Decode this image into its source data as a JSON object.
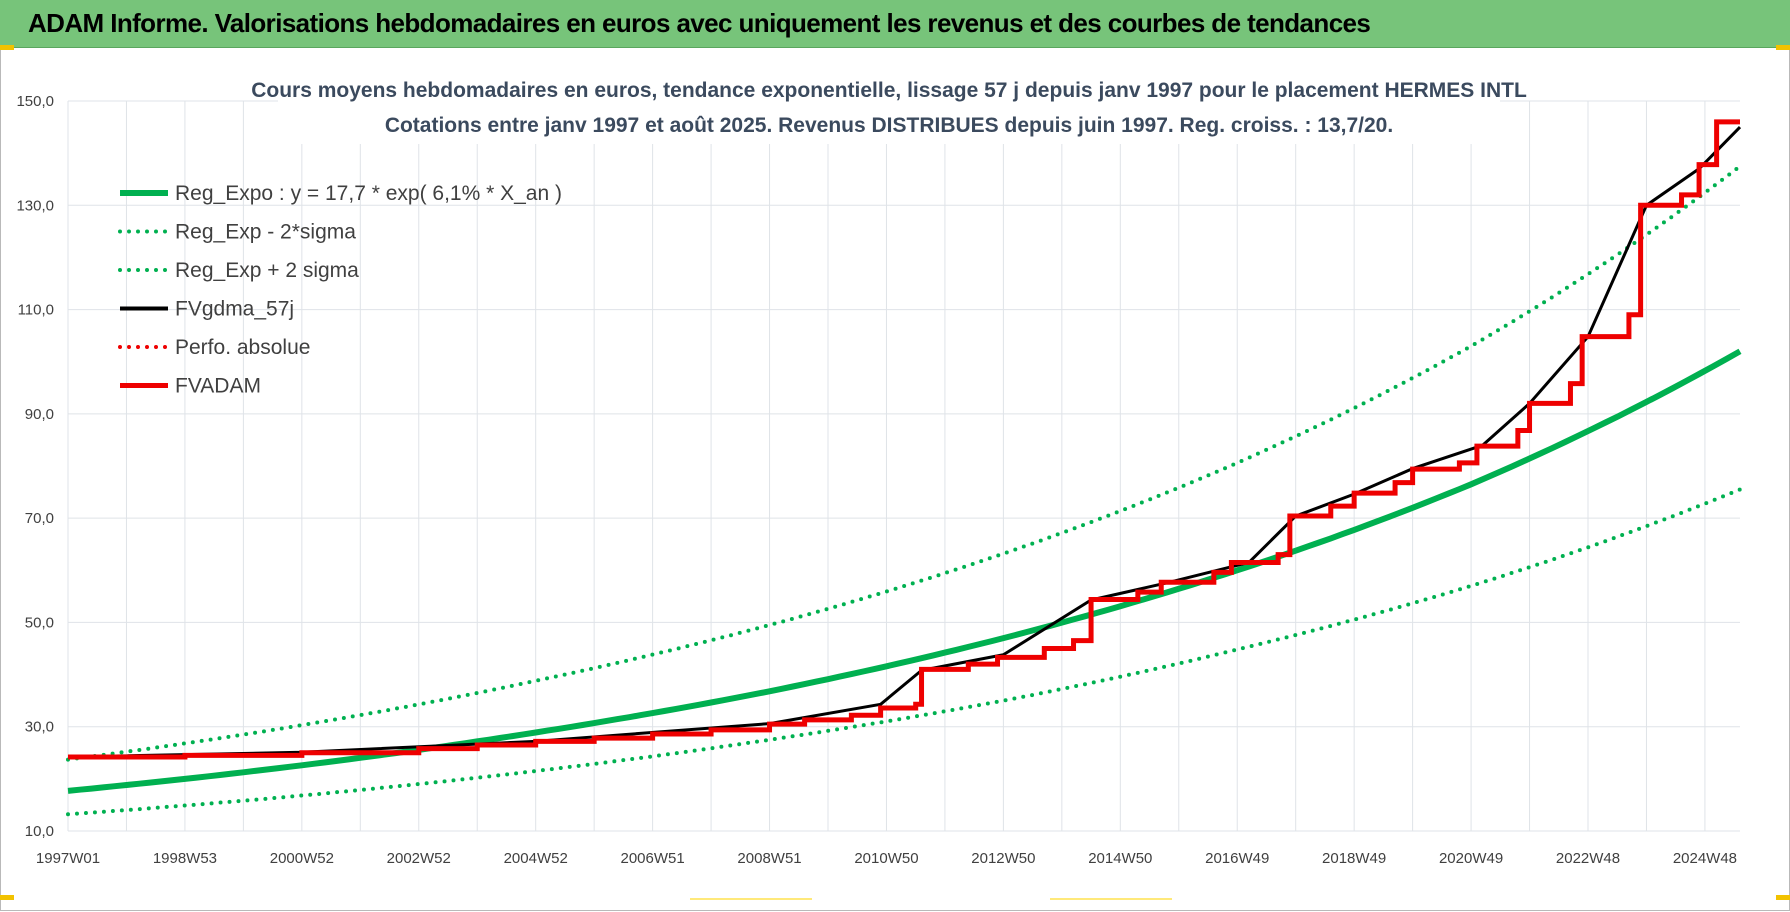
{
  "header": {
    "title": "ADAM Informe. Valorisations hebdomadaires en euros avec uniquement les revenus et des courbes de tendances"
  },
  "colors": {
    "header_bg": "#77c47a",
    "green": "#00b050",
    "red": "#ee0000",
    "black": "#000000",
    "title": "#3b4a5e"
  },
  "chart_data": {
    "type": "line",
    "title_lines": [
      "Cours moyens hebdomadaires en euros, tendance exponentielle, lissage 57 j depuis janv 1997 pour le placement HERMES INTL",
      "Cotations entre janv 1997 et août 2025. Revenus DISTRIBUES depuis juin 1997. Reg. croiss. : 13,7/20."
    ],
    "ylim": [
      10,
      150
    ],
    "y_ticks": [
      "10,0",
      "30,0",
      "50,0",
      "70,0",
      "90,0",
      "110,0",
      "130,0",
      "150,0"
    ],
    "y_tick_values": [
      10,
      30,
      50,
      70,
      90,
      110,
      130,
      150
    ],
    "x_range_years": [
      1997.0,
      2025.6
    ],
    "x_ticks": [
      {
        "year": 1997.0,
        "label": "1997W01"
      },
      {
        "year": 1999.0,
        "label": "1998W53"
      },
      {
        "year": 2001.0,
        "label": "2000W52"
      },
      {
        "year": 2003.0,
        "label": "2002W52"
      },
      {
        "year": 2005.0,
        "label": "2004W52"
      },
      {
        "year": 2007.0,
        "label": "2006W51"
      },
      {
        "year": 2009.0,
        "label": "2008W51"
      },
      {
        "year": 2011.0,
        "label": "2010W50"
      },
      {
        "year": 2013.0,
        "label": "2012W50"
      },
      {
        "year": 2015.0,
        "label": "2014W50"
      },
      {
        "year": 2017.0,
        "label": "2016W49"
      },
      {
        "year": 2019.0,
        "label": "2018W49"
      },
      {
        "year": 2021.0,
        "label": "2020W49"
      },
      {
        "year": 2023.0,
        "label": "2022W48"
      },
      {
        "year": 2025.0,
        "label": "2024W48"
      }
    ],
    "grid": true,
    "legend_position": "top-left",
    "series": [
      {
        "name": "Reg_Expo : y = 17,7 * exp( 6,1% *  X_an )",
        "style": "solid-thick",
        "color": "#00b050",
        "points": [
          [
            1997.0,
            17.7
          ],
          [
            2001.0,
            22.6
          ],
          [
            2005.0,
            28.9
          ],
          [
            2009.0,
            36.8
          ],
          [
            2013.0,
            47.0
          ],
          [
            2017.0,
            60.0
          ],
          [
            2021.0,
            76.5
          ],
          [
            2025.6,
            102.0
          ]
        ]
      },
      {
        "name": "Reg_Exp - 2*sigma",
        "style": "dotted",
        "color": "#00b050",
        "points": [
          [
            1997.0,
            13.2
          ],
          [
            2001.0,
            16.8
          ],
          [
            2005.0,
            21.5
          ],
          [
            2009.0,
            27.5
          ],
          [
            2013.0,
            35.0
          ],
          [
            2017.0,
            44.8
          ],
          [
            2021.0,
            57.0
          ],
          [
            2025.6,
            75.5
          ]
        ]
      },
      {
        "name": "Reg_Exp + 2 sigma",
        "style": "dotted",
        "color": "#00b050",
        "points": [
          [
            1997.0,
            23.7
          ],
          [
            2001.0,
            30.3
          ],
          [
            2005.0,
            38.8
          ],
          [
            2009.0,
            49.5
          ],
          [
            2013.0,
            63.2
          ],
          [
            2017.0,
            80.6
          ],
          [
            2021.0,
            103.0
          ],
          [
            2025.6,
            137.5
          ]
        ]
      },
      {
        "name": "FVgdma_57j",
        "style": "solid",
        "color": "#000000",
        "points": [
          [
            1997.0,
            24.2
          ],
          [
            2001.0,
            25.1
          ],
          [
            2005.0,
            27.2
          ],
          [
            2009.0,
            30.6
          ],
          [
            2010.9,
            34.3
          ],
          [
            2011.6,
            40.8
          ],
          [
            2013.0,
            43.8
          ],
          [
            2014.5,
            54.3
          ],
          [
            2015.8,
            57.6
          ],
          [
            2017.2,
            61.5
          ],
          [
            2018.0,
            70.4
          ],
          [
            2019.0,
            74.6
          ],
          [
            2020.0,
            79.5
          ],
          [
            2021.2,
            84.0
          ],
          [
            2022.0,
            92.0
          ],
          [
            2023.0,
            104.8
          ],
          [
            2024.0,
            130.0
          ],
          [
            2024.9,
            137.0
          ],
          [
            2025.6,
            145.0
          ]
        ]
      },
      {
        "name": "Perfo. absolue",
        "style": "dotted",
        "color": "#ee0000",
        "points": []
      },
      {
        "name": "FVADAM",
        "style": "step-thick",
        "color": "#ee0000",
        "points": [
          [
            1997.0,
            24.2
          ],
          [
            1999.0,
            24.5
          ],
          [
            2001.0,
            25.0
          ],
          [
            2003.0,
            25.8
          ],
          [
            2004.0,
            26.5
          ],
          [
            2005.0,
            27.2
          ],
          [
            2006.0,
            27.8
          ],
          [
            2007.0,
            28.6
          ],
          [
            2008.0,
            29.4
          ],
          [
            2009.0,
            30.5
          ],
          [
            2009.6,
            31.3
          ],
          [
            2010.4,
            32.2
          ],
          [
            2010.9,
            33.6
          ],
          [
            2011.5,
            34.3
          ],
          [
            2011.6,
            41.0
          ],
          [
            2012.4,
            42.0
          ],
          [
            2012.9,
            43.3
          ],
          [
            2013.7,
            45.0
          ],
          [
            2014.2,
            46.5
          ],
          [
            2014.5,
            54.4
          ],
          [
            2015.3,
            55.8
          ],
          [
            2015.7,
            57.7
          ],
          [
            2016.6,
            59.6
          ],
          [
            2016.9,
            61.5
          ],
          [
            2017.7,
            63.0
          ],
          [
            2017.9,
            70.4
          ],
          [
            2018.6,
            72.3
          ],
          [
            2019.0,
            74.8
          ],
          [
            2019.7,
            76.8
          ],
          [
            2020.0,
            79.4
          ],
          [
            2020.8,
            80.6
          ],
          [
            2021.1,
            83.8
          ],
          [
            2021.8,
            86.8
          ],
          [
            2022.0,
            92.0
          ],
          [
            2022.7,
            95.8
          ],
          [
            2022.9,
            104.8
          ],
          [
            2023.7,
            109.0
          ],
          [
            2023.9,
            130.0
          ],
          [
            2024.6,
            132.0
          ],
          [
            2024.9,
            137.8
          ],
          [
            2025.2,
            146.0
          ],
          [
            2025.6,
            146.0
          ]
        ]
      }
    ]
  }
}
